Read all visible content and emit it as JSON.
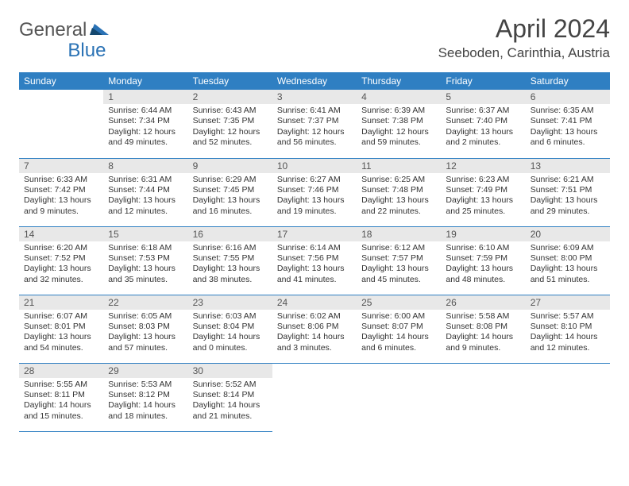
{
  "logo": {
    "part1": "General",
    "part2": "Blue"
  },
  "title": "April 2024",
  "location": "Seeboden, Carinthia, Austria",
  "colors": {
    "header_bg": "#2f7fc2",
    "header_text": "#ffffff",
    "daynum_bg": "#e8e8e8",
    "rule": "#2f7fc2",
    "body_text": "#333333",
    "logo_gray": "#555555",
    "logo_blue": "#2a72b5"
  },
  "weekdays": [
    "Sunday",
    "Monday",
    "Tuesday",
    "Wednesday",
    "Thursday",
    "Friday",
    "Saturday"
  ],
  "start_offset": 1,
  "days": [
    {
      "n": 1,
      "sunrise": "6:44 AM",
      "sunset": "7:34 PM",
      "daylight": "12 hours and 49 minutes."
    },
    {
      "n": 2,
      "sunrise": "6:43 AM",
      "sunset": "7:35 PM",
      "daylight": "12 hours and 52 minutes."
    },
    {
      "n": 3,
      "sunrise": "6:41 AM",
      "sunset": "7:37 PM",
      "daylight": "12 hours and 56 minutes."
    },
    {
      "n": 4,
      "sunrise": "6:39 AM",
      "sunset": "7:38 PM",
      "daylight": "12 hours and 59 minutes."
    },
    {
      "n": 5,
      "sunrise": "6:37 AM",
      "sunset": "7:40 PM",
      "daylight": "13 hours and 2 minutes."
    },
    {
      "n": 6,
      "sunrise": "6:35 AM",
      "sunset": "7:41 PM",
      "daylight": "13 hours and 6 minutes."
    },
    {
      "n": 7,
      "sunrise": "6:33 AM",
      "sunset": "7:42 PM",
      "daylight": "13 hours and 9 minutes."
    },
    {
      "n": 8,
      "sunrise": "6:31 AM",
      "sunset": "7:44 PM",
      "daylight": "13 hours and 12 minutes."
    },
    {
      "n": 9,
      "sunrise": "6:29 AM",
      "sunset": "7:45 PM",
      "daylight": "13 hours and 16 minutes."
    },
    {
      "n": 10,
      "sunrise": "6:27 AM",
      "sunset": "7:46 PM",
      "daylight": "13 hours and 19 minutes."
    },
    {
      "n": 11,
      "sunrise": "6:25 AM",
      "sunset": "7:48 PM",
      "daylight": "13 hours and 22 minutes."
    },
    {
      "n": 12,
      "sunrise": "6:23 AM",
      "sunset": "7:49 PM",
      "daylight": "13 hours and 25 minutes."
    },
    {
      "n": 13,
      "sunrise": "6:21 AM",
      "sunset": "7:51 PM",
      "daylight": "13 hours and 29 minutes."
    },
    {
      "n": 14,
      "sunrise": "6:20 AM",
      "sunset": "7:52 PM",
      "daylight": "13 hours and 32 minutes."
    },
    {
      "n": 15,
      "sunrise": "6:18 AM",
      "sunset": "7:53 PM",
      "daylight": "13 hours and 35 minutes."
    },
    {
      "n": 16,
      "sunrise": "6:16 AM",
      "sunset": "7:55 PM",
      "daylight": "13 hours and 38 minutes."
    },
    {
      "n": 17,
      "sunrise": "6:14 AM",
      "sunset": "7:56 PM",
      "daylight": "13 hours and 41 minutes."
    },
    {
      "n": 18,
      "sunrise": "6:12 AM",
      "sunset": "7:57 PM",
      "daylight": "13 hours and 45 minutes."
    },
    {
      "n": 19,
      "sunrise": "6:10 AM",
      "sunset": "7:59 PM",
      "daylight": "13 hours and 48 minutes."
    },
    {
      "n": 20,
      "sunrise": "6:09 AM",
      "sunset": "8:00 PM",
      "daylight": "13 hours and 51 minutes."
    },
    {
      "n": 21,
      "sunrise": "6:07 AM",
      "sunset": "8:01 PM",
      "daylight": "13 hours and 54 minutes."
    },
    {
      "n": 22,
      "sunrise": "6:05 AM",
      "sunset": "8:03 PM",
      "daylight": "13 hours and 57 minutes."
    },
    {
      "n": 23,
      "sunrise": "6:03 AM",
      "sunset": "8:04 PM",
      "daylight": "14 hours and 0 minutes."
    },
    {
      "n": 24,
      "sunrise": "6:02 AM",
      "sunset": "8:06 PM",
      "daylight": "14 hours and 3 minutes."
    },
    {
      "n": 25,
      "sunrise": "6:00 AM",
      "sunset": "8:07 PM",
      "daylight": "14 hours and 6 minutes."
    },
    {
      "n": 26,
      "sunrise": "5:58 AM",
      "sunset": "8:08 PM",
      "daylight": "14 hours and 9 minutes."
    },
    {
      "n": 27,
      "sunrise": "5:57 AM",
      "sunset": "8:10 PM",
      "daylight": "14 hours and 12 minutes."
    },
    {
      "n": 28,
      "sunrise": "5:55 AM",
      "sunset": "8:11 PM",
      "daylight": "14 hours and 15 minutes."
    },
    {
      "n": 29,
      "sunrise": "5:53 AM",
      "sunset": "8:12 PM",
      "daylight": "14 hours and 18 minutes."
    },
    {
      "n": 30,
      "sunrise": "5:52 AM",
      "sunset": "8:14 PM",
      "daylight": "14 hours and 21 minutes."
    }
  ],
  "labels": {
    "sunrise": "Sunrise:",
    "sunset": "Sunset:",
    "daylight": "Daylight:"
  }
}
